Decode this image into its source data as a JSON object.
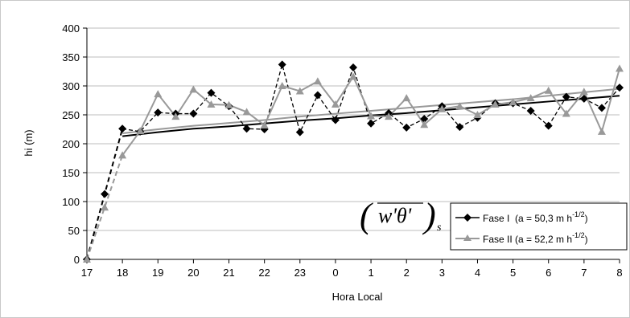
{
  "chart_data": {
    "type": "line",
    "title": "",
    "xlabel": "Hora Local",
    "ylabel": "hi (m)",
    "ylim": [
      0,
      400
    ],
    "yticks": [
      0,
      50,
      100,
      150,
      200,
      250,
      300,
      350,
      400
    ],
    "grid": "horizontal",
    "x_ticks": [
      "17",
      "18",
      "19",
      "20",
      "21",
      "22",
      "23",
      "0",
      "1",
      "2",
      "3",
      "4",
      "5",
      "6",
      "7",
      "8"
    ],
    "annotation": {
      "formula_main": "w'θ'",
      "formula_sub": "s"
    },
    "legend_position": "bottom-right",
    "series": [
      {
        "name": "Fase I  (a = 50,3 m h",
        "name_sup": "-1/2",
        "name_close": ")",
        "color": "#000000",
        "marker": "diamond",
        "points": [
          {
            "x": 0.0,
            "y": 0
          },
          {
            "x": 0.5,
            "y": 113
          },
          {
            "x": 1.0,
            "y": 226
          },
          {
            "x": 1.5,
            "y": 221
          },
          {
            "x": 2.0,
            "y": 254
          },
          {
            "x": 2.5,
            "y": 252
          },
          {
            "x": 3.0,
            "y": 252
          },
          {
            "x": 3.5,
            "y": 288
          },
          {
            "x": 4.0,
            "y": 265
          },
          {
            "x": 4.5,
            "y": 226
          },
          {
            "x": 5.0,
            "y": 225
          },
          {
            "x": 5.5,
            "y": 337
          },
          {
            "x": 6.0,
            "y": 220
          },
          {
            "x": 6.5,
            "y": 284
          },
          {
            "x": 7.0,
            "y": 241
          },
          {
            "x": 7.5,
            "y": 332
          },
          {
            "x": 8.0,
            "y": 235
          },
          {
            "x": 8.5,
            "y": 253
          },
          {
            "x": 9.0,
            "y": 228
          },
          {
            "x": 9.5,
            "y": 243
          },
          {
            "x": 10.0,
            "y": 265
          },
          {
            "x": 10.5,
            "y": 229
          },
          {
            "x": 11.0,
            "y": 245
          },
          {
            "x": 11.5,
            "y": 270
          },
          {
            "x": 12.0,
            "y": 270
          },
          {
            "x": 12.5,
            "y": 257
          },
          {
            "x": 13.0,
            "y": 231
          },
          {
            "x": 13.5,
            "y": 281
          },
          {
            "x": 14.0,
            "y": 278
          },
          {
            "x": 14.5,
            "y": 262
          },
          {
            "x": 15.0,
            "y": 297
          }
        ],
        "trend": [
          {
            "x": 1.0,
            "y": 213
          },
          {
            "x": 2.0,
            "y": 220
          },
          {
            "x": 3.0,
            "y": 226
          },
          {
            "x": 4.0,
            "y": 230
          },
          {
            "x": 5.0,
            "y": 235
          },
          {
            "x": 6.0,
            "y": 240
          },
          {
            "x": 7.0,
            "y": 244
          },
          {
            "x": 8.0,
            "y": 249
          },
          {
            "x": 9.0,
            "y": 253
          },
          {
            "x": 10.0,
            "y": 258
          },
          {
            "x": 11.0,
            "y": 263
          },
          {
            "x": 12.0,
            "y": 268
          },
          {
            "x": 13.0,
            "y": 273
          },
          {
            "x": 14.0,
            "y": 278
          },
          {
            "x": 15.0,
            "y": 283
          }
        ]
      },
      {
        "name": "Fase II (a = 52,2 m h",
        "name_sup": "-1/2",
        "name_close": ")",
        "color": "#999999",
        "marker": "triangle",
        "points": [
          {
            "x": 0.0,
            "y": 0
          },
          {
            "x": 0.5,
            "y": 90
          },
          {
            "x": 1.0,
            "y": 180
          },
          {
            "x": 1.5,
            "y": 222
          },
          {
            "x": 2.0,
            "y": 286
          },
          {
            "x": 2.5,
            "y": 247
          },
          {
            "x": 3.0,
            "y": 294
          },
          {
            "x": 3.5,
            "y": 268
          },
          {
            "x": 4.0,
            "y": 267
          },
          {
            "x": 4.5,
            "y": 255
          },
          {
            "x": 5.0,
            "y": 232
          },
          {
            "x": 5.5,
            "y": 300
          },
          {
            "x": 6.0,
            "y": 291
          },
          {
            "x": 6.5,
            "y": 308
          },
          {
            "x": 7.0,
            "y": 268
          },
          {
            "x": 7.5,
            "y": 316
          },
          {
            "x": 8.0,
            "y": 248
          },
          {
            "x": 8.5,
            "y": 247
          },
          {
            "x": 9.0,
            "y": 279
          },
          {
            "x": 9.5,
            "y": 233
          },
          {
            "x": 10.0,
            "y": 260
          },
          {
            "x": 10.5,
            "y": 265
          },
          {
            "x": 11.0,
            "y": 250
          },
          {
            "x": 11.5,
            "y": 268
          },
          {
            "x": 12.0,
            "y": 272
          },
          {
            "x": 12.5,
            "y": 279
          },
          {
            "x": 13.0,
            "y": 292
          },
          {
            "x": 13.5,
            "y": 252
          },
          {
            "x": 14.0,
            "y": 290
          },
          {
            "x": 14.5,
            "y": 221
          },
          {
            "x": 15.0,
            "y": 330
          }
        ],
        "trend": [
          {
            "x": 1.0,
            "y": 218
          },
          {
            "x": 2.0,
            "y": 225
          },
          {
            "x": 3.0,
            "y": 231
          },
          {
            "x": 4.0,
            "y": 236
          },
          {
            "x": 5.0,
            "y": 241
          },
          {
            "x": 6.0,
            "y": 247
          },
          {
            "x": 7.0,
            "y": 252
          },
          {
            "x": 8.0,
            "y": 257
          },
          {
            "x": 9.0,
            "y": 262
          },
          {
            "x": 10.0,
            "y": 267
          },
          {
            "x": 11.0,
            "y": 272
          },
          {
            "x": 12.0,
            "y": 277
          },
          {
            "x": 13.0,
            "y": 283
          },
          {
            "x": 14.0,
            "y": 289
          },
          {
            "x": 15.0,
            "y": 295
          }
        ]
      }
    ]
  }
}
